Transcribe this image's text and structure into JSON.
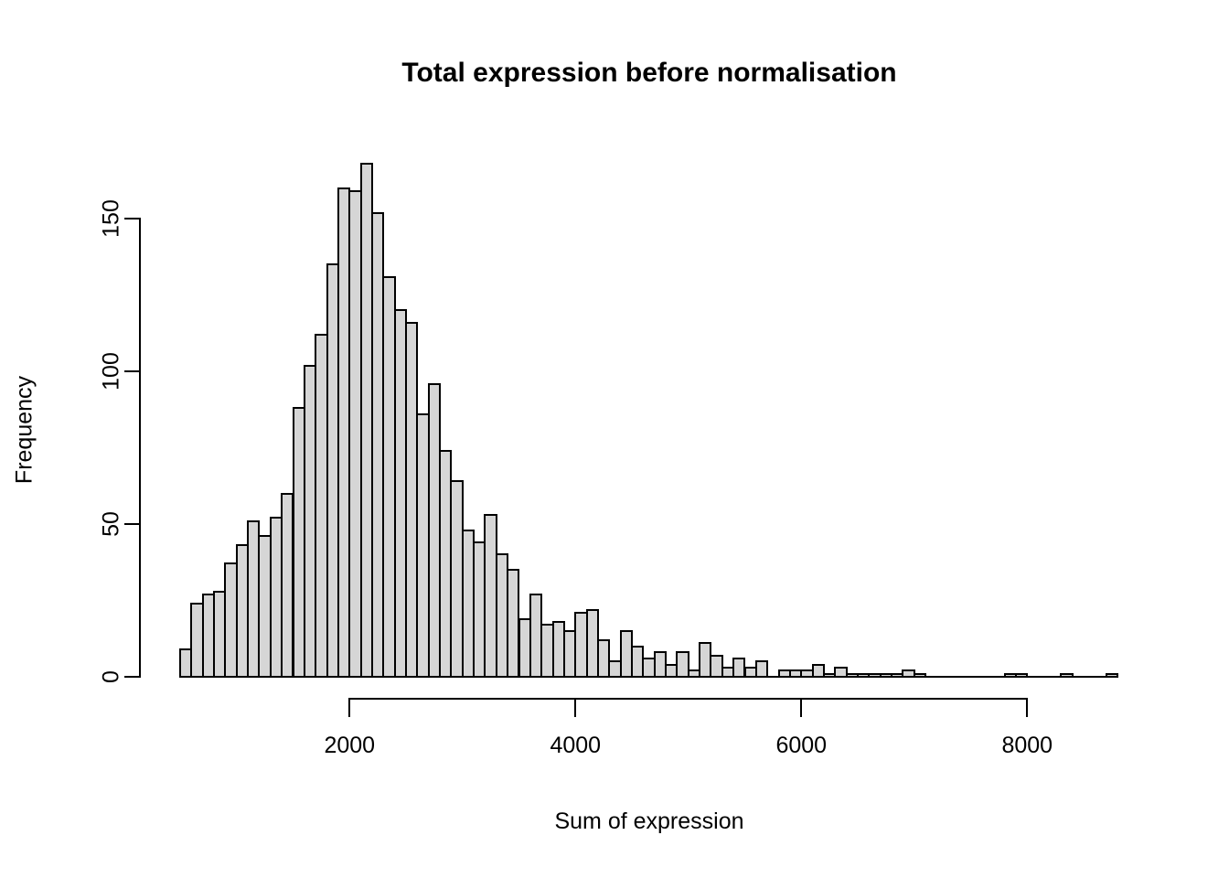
{
  "figure": {
    "title": "Total expression before normalisation",
    "xlabel": "Sum of expression",
    "ylabel": "Frequency"
  },
  "chart_data": {
    "type": "bar",
    "subtype": "histogram",
    "title": "Total expression before normalisation",
    "xlabel": "Sum of expression",
    "ylabel": "Frequency",
    "bin_start": 500,
    "bin_width": 100,
    "counts": [
      9,
      24,
      27,
      28,
      37,
      43,
      51,
      46,
      52,
      60,
      88,
      102,
      112,
      135,
      160,
      159,
      168,
      152,
      131,
      120,
      116,
      86,
      96,
      74,
      64,
      48,
      44,
      53,
      40,
      35,
      19,
      27,
      17,
      18,
      15,
      21,
      22,
      12,
      5,
      15,
      10,
      6,
      8,
      4,
      8,
      2,
      11,
      7,
      3,
      6,
      3,
      5,
      0,
      2,
      2,
      2,
      4,
      1,
      3,
      1,
      1,
      1,
      1,
      1,
      2,
      1,
      0,
      0,
      0,
      0,
      0,
      0,
      0,
      1,
      1,
      0,
      0,
      0,
      1,
      0,
      0,
      0,
      1
    ],
    "x_ticks": [
      2000,
      4000,
      6000,
      8000
    ],
    "y_ticks": [
      0,
      50,
      100,
      150
    ],
    "xlim": [
      500,
      8800
    ],
    "ylim": [
      0,
      168
    ],
    "grid": false,
    "legend": null,
    "bar_fill": "#d6d6d6",
    "bar_border": "#000000",
    "axis_color": "#000000",
    "background": "#ffffff"
  }
}
